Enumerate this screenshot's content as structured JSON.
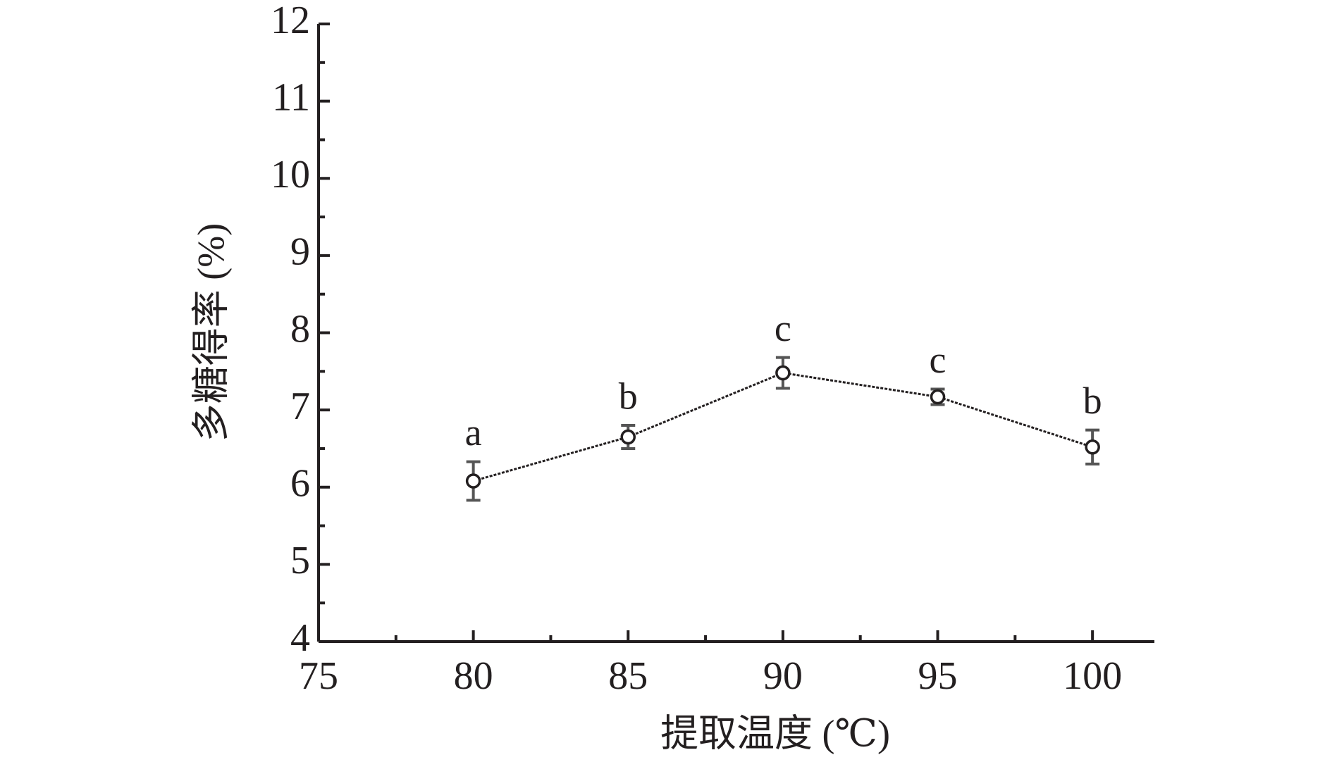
{
  "chart_data": {
    "type": "line",
    "x_label": "提取温度 (℃)",
    "y_label": "多糖得率 (%)",
    "x": [
      80,
      85,
      90,
      95,
      100
    ],
    "values": [
      6.08,
      6.65,
      7.48,
      7.17,
      6.52
    ],
    "errors": [
      0.25,
      0.15,
      0.2,
      0.1,
      0.22
    ],
    "value_annotations": [
      "a",
      "b",
      "c",
      "c",
      "b"
    ],
    "color": "#231f20",
    "xlim": [
      75,
      102
    ],
    "xticks": [
      75,
      80,
      85,
      90,
      95,
      100
    ],
    "minor_xticks": [
      77.5,
      82.5,
      87.5,
      92.5,
      97.5
    ],
    "ylim": [
      4,
      12
    ],
    "yticks": [
      4,
      5,
      6,
      7,
      8,
      9,
      10,
      11,
      12
    ],
    "minor_yticks": [
      4.5,
      5.5,
      6.5,
      7.5,
      8.5,
      9.5,
      10.5,
      11.5
    ]
  }
}
